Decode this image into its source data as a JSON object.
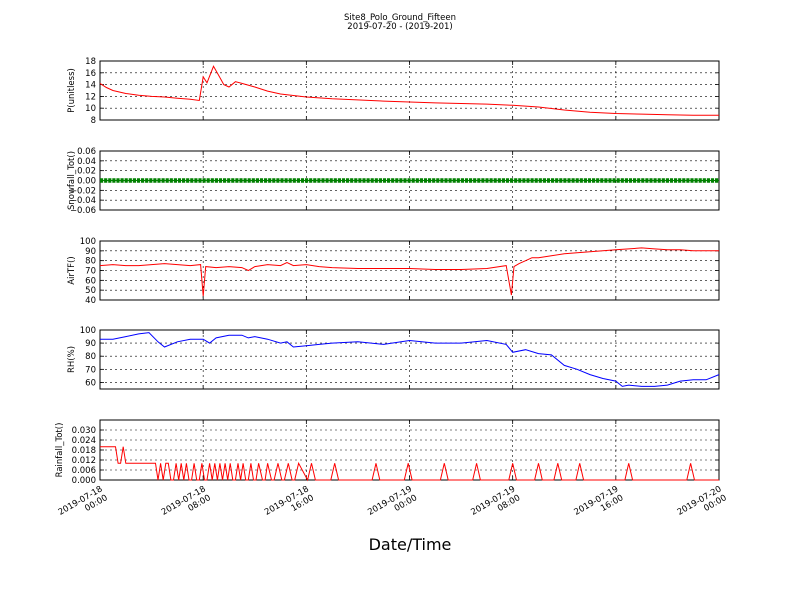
{
  "figure": {
    "title": "Site8_Polo_Ground_Fifteen",
    "subtitle": "2019-07-20 - (2019-201)",
    "xlabel": "Date/Time",
    "x_tick_labels": [
      [
        "2019-07-18",
        "00:00"
      ],
      [
        "2019-07-18",
        "08:00"
      ],
      [
        "2019-07-18",
        "16:00"
      ],
      [
        "2019-07-19",
        "00:00"
      ],
      [
        "2019-07-19",
        "08:00"
      ],
      [
        "2019-07-19",
        "16:00"
      ],
      [
        "2019-07-20",
        "00:00"
      ]
    ]
  },
  "chart_data": [
    {
      "type": "line",
      "ylabel": "P(unitless)",
      "ylim": [
        8,
        18
      ],
      "yticks": [
        "8",
        "10",
        "12",
        "14",
        "16",
        "18"
      ],
      "grid": true,
      "series": [
        {
          "color": "#ff0000",
          "x": [
            0,
            0.5,
            1,
            2,
            3,
            4,
            5,
            6,
            7,
            7.7,
            8,
            8.3,
            8.8,
            9.2,
            9.6,
            10,
            10.5,
            11,
            12,
            13,
            14,
            16,
            18,
            22,
            26,
            30,
            32,
            34,
            36,
            38,
            40,
            42,
            44,
            46,
            48
          ],
          "y": [
            14.2,
            13.5,
            13.0,
            12.5,
            12.2,
            12.0,
            11.9,
            11.7,
            11.5,
            11.3,
            15.3,
            14.3,
            17.1,
            15.6,
            14.0,
            13.6,
            14.5,
            14.2,
            13.6,
            12.9,
            12.4,
            11.9,
            11.6,
            11.2,
            10.9,
            10.7,
            10.5,
            10.2,
            9.7,
            9.3,
            9.1,
            9.0,
            8.9,
            8.8,
            8.8
          ]
        }
      ]
    },
    {
      "type": "line",
      "ylabel": "Snowfall_Tot()",
      "ylim": [
        -0.06,
        0.06
      ],
      "yticks": [
        "−0.06",
        "−0.04",
        "−0.02",
        "0.00",
        "0.02",
        "0.04",
        "0.06"
      ],
      "grid": true,
      "series": [
        {
          "color": "#008000",
          "marker": "dot",
          "x": [
            0,
            48
          ],
          "y": [
            0,
            0
          ]
        }
      ]
    },
    {
      "type": "line",
      "ylabel": "AirTF()",
      "ylim": [
        40,
        100
      ],
      "yticks": [
        "40",
        "50",
        "60",
        "70",
        "80",
        "90",
        "100"
      ],
      "grid": true,
      "series": [
        {
          "color": "#ff0000",
          "x": [
            0,
            1,
            2,
            3,
            4,
            5,
            6,
            7,
            7.8,
            8.0,
            8.2,
            9,
            10,
            11,
            11.5,
            12,
            13,
            14,
            14.5,
            15,
            16,
            17,
            18,
            20,
            22,
            24,
            26,
            28,
            30,
            31.5,
            31.9,
            32.1,
            32.5,
            33,
            33.5,
            34,
            35,
            36,
            37,
            38,
            39,
            40,
            41,
            42,
            43,
            44,
            45,
            46,
            47,
            48
          ],
          "y": [
            75,
            76,
            75,
            75,
            76,
            77,
            76,
            75,
            76,
            44,
            74,
            73,
            74,
            73,
            70,
            74,
            76,
            75,
            78,
            75,
            76,
            74,
            73,
            72,
            72,
            72,
            71,
            71,
            72,
            75,
            45,
            74,
            77,
            80,
            83,
            83,
            85,
            87,
            88,
            89,
            90,
            91,
            92,
            93,
            92,
            91,
            91,
            90,
            90,
            90
          ]
        }
      ]
    },
    {
      "type": "line",
      "ylabel": "RH(%)",
      "ylim": [
        55,
        100
      ],
      "yticks": [
        "60",
        "70",
        "80",
        "90",
        "100"
      ],
      "grid": true,
      "series": [
        {
          "color": "#0000ff",
          "x": [
            0,
            1,
            2,
            3,
            3.8,
            4.5,
            5,
            6,
            7,
            8,
            8.5,
            9,
            10,
            11,
            11.5,
            12,
            13,
            14,
            14.5,
            15,
            16,
            17,
            18,
            20,
            22,
            24,
            26,
            28,
            30,
            31.5,
            32,
            33,
            34,
            35,
            36,
            37,
            38,
            39,
            40,
            40.5,
            41,
            42,
            43,
            44,
            45,
            46,
            47,
            48
          ],
          "y": [
            93,
            93,
            95,
            97,
            98,
            91,
            87,
            91,
            93,
            93,
            90,
            94,
            96,
            96,
            94,
            95,
            93,
            90,
            91,
            87,
            88,
            89,
            90,
            91,
            89,
            92,
            90,
            90,
            92,
            89,
            83,
            85,
            82,
            81,
            73,
            70,
            66,
            63,
            61,
            57,
            58,
            57,
            57,
            58,
            61,
            62,
            62,
            66
          ]
        }
      ]
    },
    {
      "type": "line",
      "ylabel": "Rainfall_Tot()",
      "ylim": [
        0,
        0.036
      ],
      "yticks": [
        "0.000",
        "0.006",
        "0.012",
        "0.018",
        "0.024",
        "0.030"
      ],
      "grid": true,
      "series": [
        {
          "color": "#ff0000",
          "x": [
            0,
            0.3,
            0.6,
            1,
            1.2,
            1.4,
            1.6,
            1.8,
            2,
            2.5,
            3,
            3.5,
            4,
            4.3,
            4.5,
            4.7,
            4.9,
            5.1,
            5.3,
            5.5,
            5.7,
            5.9,
            6.1,
            6.3,
            6.5,
            6.7,
            6.9,
            7.1,
            7.3,
            7.5,
            7.7,
            7.9,
            8.1,
            8.3,
            8.5,
            8.7,
            8.9,
            9.1,
            9.3,
            9.5,
            9.7,
            9.9,
            10.1,
            10.3,
            10.5,
            10.7,
            10.9,
            11.1,
            11.3,
            11.5,
            11.7,
            11.9,
            12.1,
            12.3,
            12.6,
            12.8,
            13.0,
            13.3,
            13.5,
            13.8,
            14.1,
            14.3,
            14.6,
            14.9,
            15.1,
            15.4,
            16.1,
            16.4,
            16.7,
            17.9,
            18.2,
            18.5,
            21.1,
            21.4,
            21.7,
            23.6,
            23.9,
            24.2,
            26.4,
            26.7,
            27.0,
            28.9,
            29.2,
            29.5,
            31.7,
            32.0,
            32.3,
            33.7,
            34.0,
            34.3,
            35.2,
            35.5,
            35.8,
            36.9,
            37.2,
            37.5,
            40.7,
            41.0,
            41.3,
            45.5,
            45.8,
            46.1,
            48
          ],
          "y": [
            0.02,
            0.02,
            0.02,
            0.02,
            0.02,
            0.01,
            0.01,
            0.02,
            0.01,
            0.01,
            0.01,
            0.01,
            0.01,
            0.01,
            0,
            0.01,
            0,
            0.01,
            0.01,
            0,
            0,
            0.01,
            0,
            0.01,
            0,
            0.01,
            0,
            0,
            0.01,
            0,
            0,
            0.01,
            0,
            0,
            0.01,
            0,
            0.01,
            0,
            0.01,
            0,
            0.01,
            0,
            0.01,
            0,
            0,
            0.01,
            0,
            0.01,
            0,
            0,
            0.01,
            0,
            0,
            0.01,
            0,
            0,
            0.01,
            0,
            0,
            0.01,
            0,
            0,
            0.01,
            0,
            0,
            0.01,
            0,
            0.01,
            0,
            0,
            0.01,
            0,
            0,
            0.01,
            0,
            0,
            0.01,
            0,
            0,
            0.01,
            0,
            0,
            0.01,
            0,
            0,
            0.01,
            0,
            0,
            0.01,
            0,
            0,
            0.01,
            0,
            0,
            0.01,
            0,
            0,
            0.01,
            0,
            0,
            0.01,
            0,
            0
          ]
        }
      ]
    }
  ]
}
